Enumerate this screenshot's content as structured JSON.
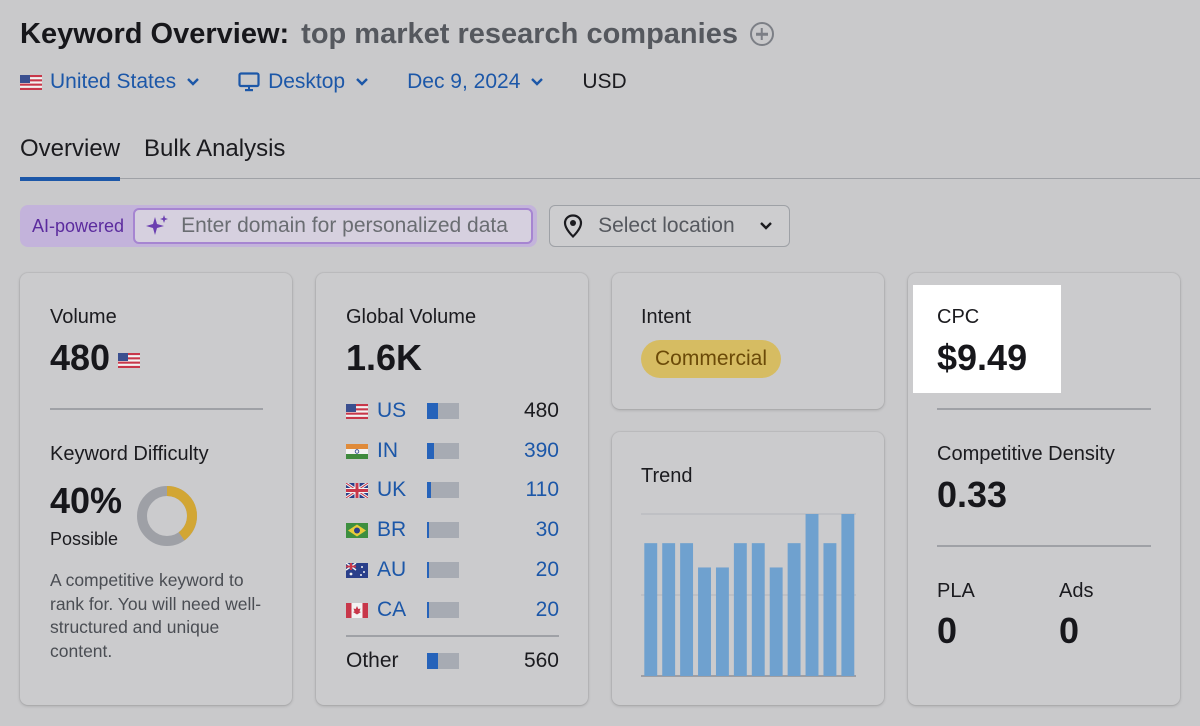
{
  "header": {
    "title_label": "Keyword Overview:",
    "keyword": "top market research companies",
    "add_icon": "plus-circle-icon"
  },
  "filters": {
    "country": "United States",
    "device": "Desktop",
    "date": "Dec 9, 2024",
    "currency": "USD"
  },
  "tabs": [
    {
      "label": "Overview",
      "active": true
    },
    {
      "label": "Bulk Analysis",
      "active": false
    }
  ],
  "search": {
    "ai_label": "AI-powered",
    "domain_placeholder": "Enter domain for personalized data",
    "location_placeholder": "Select location"
  },
  "volume_card": {
    "label": "Volume",
    "value": "480",
    "kd_label": "Keyword Difficulty",
    "kd_value": "40%",
    "kd_status": "Possible",
    "kd_fraction": 0.4,
    "kd_color": "#d2a634",
    "kd_description": "A competitive keyword to rank for. You will need well-structured and unique content."
  },
  "global_card": {
    "label": "Global Volume",
    "value": "1.6K",
    "countries": [
      {
        "code": "US",
        "value": "480",
        "share": 0.35
      },
      {
        "code": "IN",
        "value": "390",
        "share": 0.22
      },
      {
        "code": "UK",
        "value": "110",
        "share": 0.12
      },
      {
        "code": "BR",
        "value": "30",
        "share": 0.07
      },
      {
        "code": "AU",
        "value": "20",
        "share": 0.07
      },
      {
        "code": "CA",
        "value": "20",
        "share": 0.07
      }
    ],
    "other": {
      "label": "Other",
      "value": "560",
      "share": 0.35
    }
  },
  "intent_card": {
    "label": "Intent",
    "badge": "Commercial"
  },
  "trend_card": {
    "label": "Trend",
    "chart_data": {
      "type": "bar",
      "values": [
        0.82,
        0.82,
        0.82,
        0.67,
        0.67,
        0.82,
        0.82,
        0.67,
        0.82,
        1.0,
        0.82,
        1.0
      ],
      "ylim": [
        0,
        1
      ]
    }
  },
  "cpc_card": {
    "label": "CPC",
    "value": "$9.49",
    "cd_label": "Competitive Density",
    "cd_value": "0.33",
    "pla_label": "PLA",
    "pla_value": "0",
    "ads_label": "Ads",
    "ads_value": "0"
  },
  "colors": {
    "link": "#1c57a8",
    "bar_fill": "#2663ba",
    "trend_bar": "#6fa1cf"
  }
}
